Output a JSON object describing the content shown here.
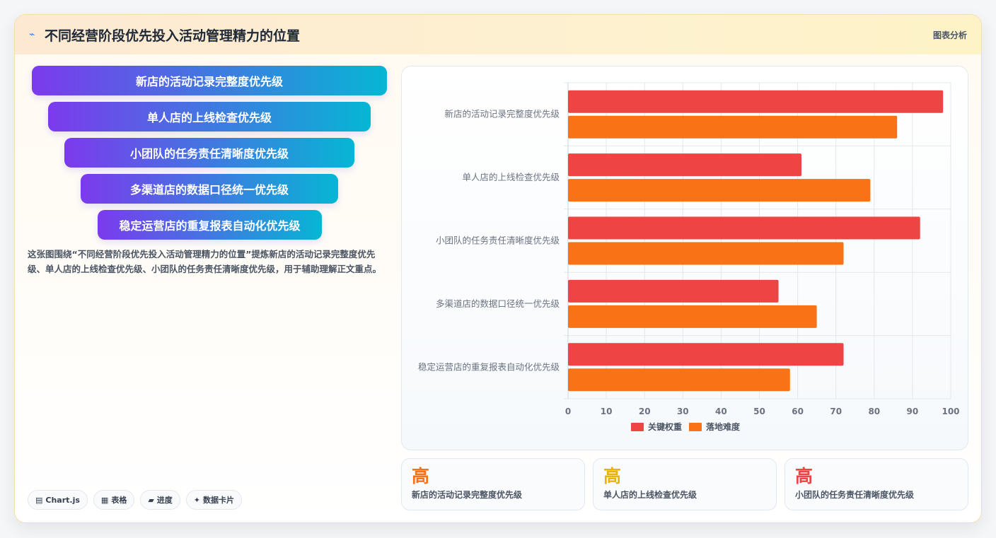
{
  "header": {
    "title": "不同经营阶段优先投入活动管理精力的位置",
    "tag": "图表分析",
    "icon": "line-icon"
  },
  "funnel": [
    "新店的活动记录完整度优先级",
    "单人店的上线检查优先级",
    "小团队的任务责任清晰度优先级",
    "多渠道店的数据口径统一优先级",
    "稳定运营店的重复报表自动化优先级"
  ],
  "description": "这张图围绕“不同经营阶段优先投入活动管理精力的位置”提炼新店的活动记录完整度优先级、单人店的上线检查优先级、小团队的任务责任清晰度优先级，用于辅助理解正文重点。",
  "pills": [
    {
      "icon": "▤",
      "label": "Chart.js"
    },
    {
      "icon": "▦",
      "label": "表格"
    },
    {
      "icon": "▰",
      "label": "进度"
    },
    {
      "icon": "✦",
      "label": "数据卡片"
    }
  ],
  "chart_data": {
    "type": "bar",
    "orientation": "horizontal",
    "categories": [
      "新店的活动记录完整度优先级",
      "单人店的上线检查优先级",
      "小团队的任务责任清晰度优先级",
      "多渠道店的数据口径统一优先级",
      "稳定运营店的重复报表自动化优先级"
    ],
    "series": [
      {
        "name": "关键权重",
        "color": "#ef4444",
        "values": [
          98,
          61,
          92,
          55,
          72
        ]
      },
      {
        "name": "落地难度",
        "color": "#f97316",
        "values": [
          86,
          79,
          72,
          65,
          58
        ]
      }
    ],
    "xlim": [
      0,
      100
    ],
    "xticks": [
      0,
      10,
      20,
      30,
      40,
      50,
      60,
      70,
      80,
      90,
      100
    ],
    "grid": true,
    "legend": "bottom"
  },
  "kpis": [
    {
      "value": "高",
      "label": "新店的活动记录完整度优先级",
      "color": "#f97316"
    },
    {
      "value": "高",
      "label": "单人店的上线检查优先级",
      "color": "#eab308"
    },
    {
      "value": "高",
      "label": "小团队的任务责任清晰度优先级",
      "color": "#ef4444"
    }
  ]
}
